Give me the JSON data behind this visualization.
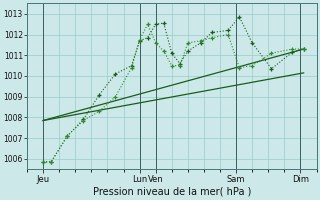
{
  "xlabel": "Pression niveau de la mer( hPa )",
  "bg_color": "#cce8e8",
  "grid_color": "#99cccc",
  "dark_green": "#1a5c1a",
  "light_green": "#2d8a2d",
  "ylim": [
    1005.5,
    1013.5
  ],
  "yticks": [
    1006,
    1007,
    1008,
    1009,
    1010,
    1011,
    1012,
    1013
  ],
  "xlim": [
    0,
    18
  ],
  "x_tick_positions": [
    1,
    7,
    8,
    13,
    17
  ],
  "x_tick_labels": [
    "Jeu",
    "Lun",
    "Ven",
    "Sam",
    "Dim"
  ],
  "series1_x": [
    1,
    1.5,
    2.5,
    3.5,
    4.5,
    5.5,
    6.5,
    7.0,
    7.5,
    8.0,
    8.5,
    9.0,
    9.5,
    10.0,
    10.8,
    11.5,
    12.5,
    13.2,
    14.0,
    15.2,
    16.5,
    17.2
  ],
  "series1_y": [
    1005.85,
    1005.85,
    1007.1,
    1007.9,
    1009.1,
    1010.1,
    1010.5,
    1011.7,
    1011.85,
    1012.5,
    1012.55,
    1011.1,
    1010.6,
    1011.2,
    1011.6,
    1012.1,
    1012.2,
    1012.85,
    1011.6,
    1010.35,
    1011.15,
    1011.3
  ],
  "series2_x": [
    1,
    1.5,
    2.5,
    3.5,
    4.5,
    5.5,
    6.5,
    7.0,
    7.5,
    8.0,
    8.5,
    9.0,
    9.5,
    10.0,
    10.8,
    11.5,
    12.5,
    13.2,
    14.0,
    15.2,
    16.5,
    17.2
  ],
  "series2_y": [
    1005.85,
    1005.85,
    1007.1,
    1007.85,
    1008.3,
    1009.0,
    1010.4,
    1011.75,
    1012.5,
    1011.6,
    1011.2,
    1010.5,
    1010.5,
    1011.6,
    1011.7,
    1011.85,
    1012.0,
    1010.4,
    1010.5,
    1011.1,
    1011.3,
    1011.3
  ],
  "trend1_x": [
    1,
    17.2
  ],
  "trend1_y": [
    1007.85,
    1010.15
  ],
  "trend2_x": [
    1,
    17.2
  ],
  "trend2_y": [
    1007.85,
    1011.3
  ],
  "vlines": [
    1,
    7,
    8,
    13,
    17
  ]
}
